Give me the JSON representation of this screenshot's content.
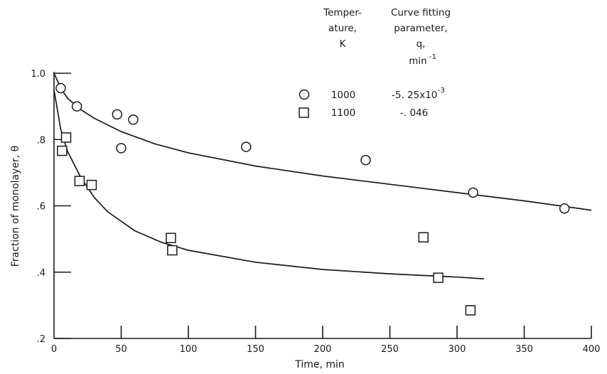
{
  "chart_data": {
    "type": "scatter",
    "xlabel": "Time, min",
    "ylabel": "Fraction of monolayer, θ",
    "xlim": [
      0,
      400
    ],
    "ylim": [
      0.2,
      1.0
    ],
    "x_ticks": [
      0,
      50,
      100,
      150,
      200,
      250,
      300,
      350,
      400
    ],
    "x_tick_labels": [
      "0",
      "50",
      "100",
      "150",
      "200",
      "250",
      "300",
      "350",
      "400"
    ],
    "y_ticks": [
      0.2,
      0.4,
      0.6,
      0.8,
      1.0
    ],
    "y_tick_labels": [
      ".2",
      ".4",
      ".6",
      ".8",
      "1.0"
    ],
    "grid": false,
    "legend": {
      "placement": "top-right",
      "col1_header": [
        "Temper-",
        "ature,",
        "K"
      ],
      "col2_header": [
        "Curve fitting",
        "parameter,",
        "q,",
        "min"
      ],
      "col2_unit_exponent": "-1",
      "rows": [
        {
          "marker": "circle",
          "temperature": "1000",
          "q_mantissa": "-5. 25x10",
          "q_exponent": "-3"
        },
        {
          "marker": "square",
          "temperature": "1100",
          "q_mantissa": "-. 046",
          "q_exponent": ""
        }
      ]
    },
    "series": [
      {
        "marker": "circle",
        "points": [
          [
            5,
            0.955
          ],
          [
            17,
            0.9
          ],
          [
            47,
            0.876
          ],
          [
            59,
            0.86
          ],
          [
            50,
            0.774
          ],
          [
            143,
            0.778
          ],
          [
            232,
            0.738
          ],
          [
            312,
            0.64
          ],
          [
            380,
            0.592
          ]
        ],
        "fit": [
          [
            0,
            1.0
          ],
          [
            5,
            0.955
          ],
          [
            10,
            0.925
          ],
          [
            20,
            0.89
          ],
          [
            30,
            0.864
          ],
          [
            50,
            0.824
          ],
          [
            75,
            0.787
          ],
          [
            100,
            0.76
          ],
          [
            150,
            0.72
          ],
          [
            200,
            0.69
          ],
          [
            250,
            0.665
          ],
          [
            300,
            0.64
          ],
          [
            350,
            0.615
          ],
          [
            400,
            0.587
          ]
        ]
      },
      {
        "marker": "square",
        "points": [
          [
            9,
            0.806
          ],
          [
            6,
            0.766
          ],
          [
            19,
            0.675
          ],
          [
            28,
            0.663
          ],
          [
            87,
            0.503
          ],
          [
            88,
            0.466
          ],
          [
            275,
            0.505
          ],
          [
            286,
            0.383
          ],
          [
            310,
            0.285
          ]
        ],
        "fit": [
          [
            0,
            0.95
          ],
          [
            5,
            0.83
          ],
          [
            10,
            0.765
          ],
          [
            20,
            0.685
          ],
          [
            30,
            0.625
          ],
          [
            40,
            0.582
          ],
          [
            60,
            0.525
          ],
          [
            80,
            0.49
          ],
          [
            100,
            0.466
          ],
          [
            150,
            0.43
          ],
          [
            200,
            0.408
          ],
          [
            250,
            0.395
          ],
          [
            300,
            0.385
          ],
          [
            320,
            0.38
          ]
        ]
      }
    ]
  }
}
